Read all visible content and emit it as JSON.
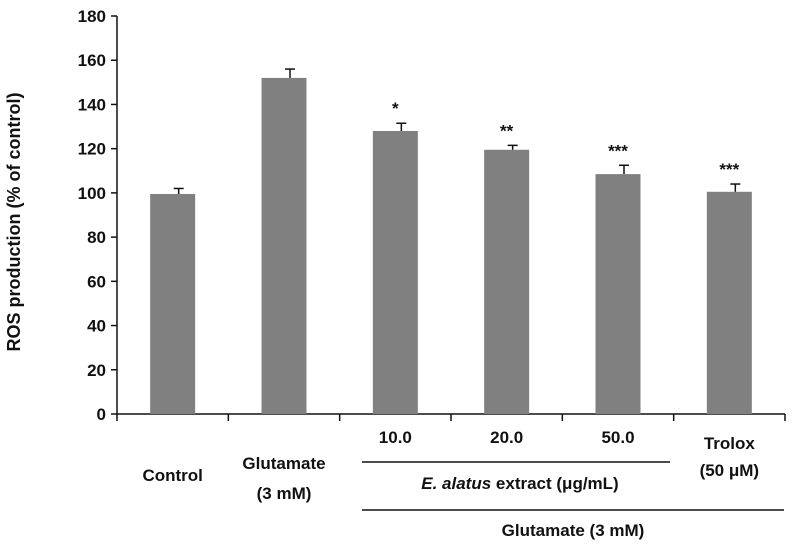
{
  "chart_data": {
    "type": "bar",
    "title": "",
    "xlabel": "",
    "ylabel": "ROS production (% of control)",
    "ylim": [
      0,
      180
    ],
    "yticks": [
      0,
      20,
      40,
      60,
      80,
      100,
      120,
      140,
      160,
      180
    ],
    "grid": false,
    "legend": "none",
    "bar_color": "#808080",
    "categories": [
      {
        "line1": "Control",
        "line2": ""
      },
      {
        "line1": "Glutamate",
        "line2": "(3 mM)"
      },
      {
        "line1": "10.0",
        "line2": ""
      },
      {
        "line1": "20.0",
        "line2": ""
      },
      {
        "line1": "50.0",
        "line2": ""
      },
      {
        "line1": "Trolox",
        "line2": "(50 μM)"
      }
    ],
    "values": [
      99.5,
      152,
      128,
      119.5,
      108.5,
      100.5
    ],
    "errors": [
      2.5,
      4,
      3.5,
      2,
      4,
      3.5
    ],
    "significance": [
      "",
      "",
      "*",
      "**",
      "***",
      "***"
    ],
    "group_labels": {
      "extract_italic": "E. alatus",
      "extract_rest": " extract (μg/mL)",
      "glutamate": "Glutamate (3 mM)"
    }
  }
}
